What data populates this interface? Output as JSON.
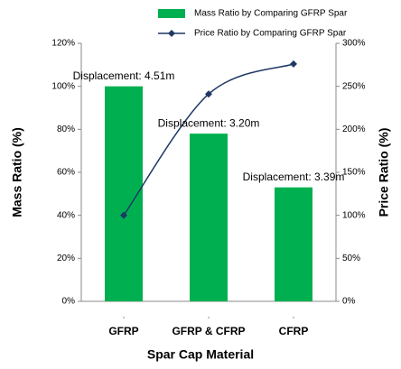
{
  "chart_data": {
    "type": "bar",
    "x_label": "Spar Cap Material",
    "y_label": "Mass Ratio (%)",
    "y2_label": "Price Ratio (%)",
    "categories": [
      "GFRP",
      "GFRP & CFRP",
      "CFRP"
    ],
    "series": [
      {
        "name": "Mass Ratio by Comparing GFRP Spar",
        "type": "bar",
        "color": "#00b050",
        "values": [
          100,
          78,
          53
        ]
      },
      {
        "name": "Price Ratio by Comparing GFRP Spar",
        "type": "line",
        "axis": "y2",
        "color": "#1f3864",
        "values": [
          100,
          241,
          276
        ]
      }
    ],
    "annotations": [
      "Displacement: 4.51m",
      "Displacement: 3.20m",
      "Displacement: 3.39m"
    ],
    "ylim": [
      0,
      120
    ],
    "yticks": [
      {
        "value": 0,
        "label": "0%"
      },
      {
        "value": 20,
        "label": "20%"
      },
      {
        "value": 40,
        "label": "40%"
      },
      {
        "value": 60,
        "label": "60%"
      },
      {
        "value": 80,
        "label": "80%"
      },
      {
        "value": 100,
        "label": "100%"
      },
      {
        "value": 120,
        "label": "120%"
      }
    ],
    "y2lim": [
      0,
      300
    ],
    "y2ticks": [
      {
        "value": 0,
        "label": "0%"
      },
      {
        "value": 50,
        "label": "50%"
      },
      {
        "value": 100,
        "label": "100%"
      },
      {
        "value": 150,
        "label": "150%"
      },
      {
        "value": 200,
        "label": "200%"
      },
      {
        "value": 250,
        "label": "250%"
      },
      {
        "value": 300,
        "label": "300%"
      }
    ],
    "grid": false,
    "legend": "top"
  }
}
